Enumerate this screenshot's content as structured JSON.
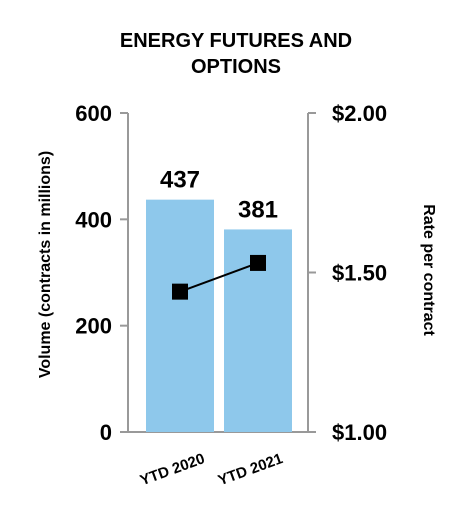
{
  "chart_data": {
    "type": "bar",
    "title_lines": [
      "ENERGY FUTURES AND",
      "OPTIONS"
    ],
    "categories": [
      "YTD 2020",
      "YTD 2021"
    ],
    "series": [
      {
        "type": "bar",
        "axis": "left",
        "values": [
          437,
          381
        ],
        "color": "#8ec8eb"
      },
      {
        "type": "line",
        "axis": "right",
        "values": [
          1.44,
          1.53
        ],
        "color": "#000000",
        "marker": "square"
      }
    ],
    "data_labels": [
      "437",
      "381"
    ],
    "ylabel": "Volume (contracts in millions)",
    "y2label": "Rate per contract",
    "ylim": [
      0,
      600
    ],
    "y2lim": [
      1.0,
      2.0
    ],
    "yticks": [
      "0",
      "200",
      "400",
      "600"
    ],
    "y2ticks": [
      "$1.00",
      "$1.50",
      "$2.00"
    ],
    "grid": false,
    "axis_color": "#999999"
  }
}
